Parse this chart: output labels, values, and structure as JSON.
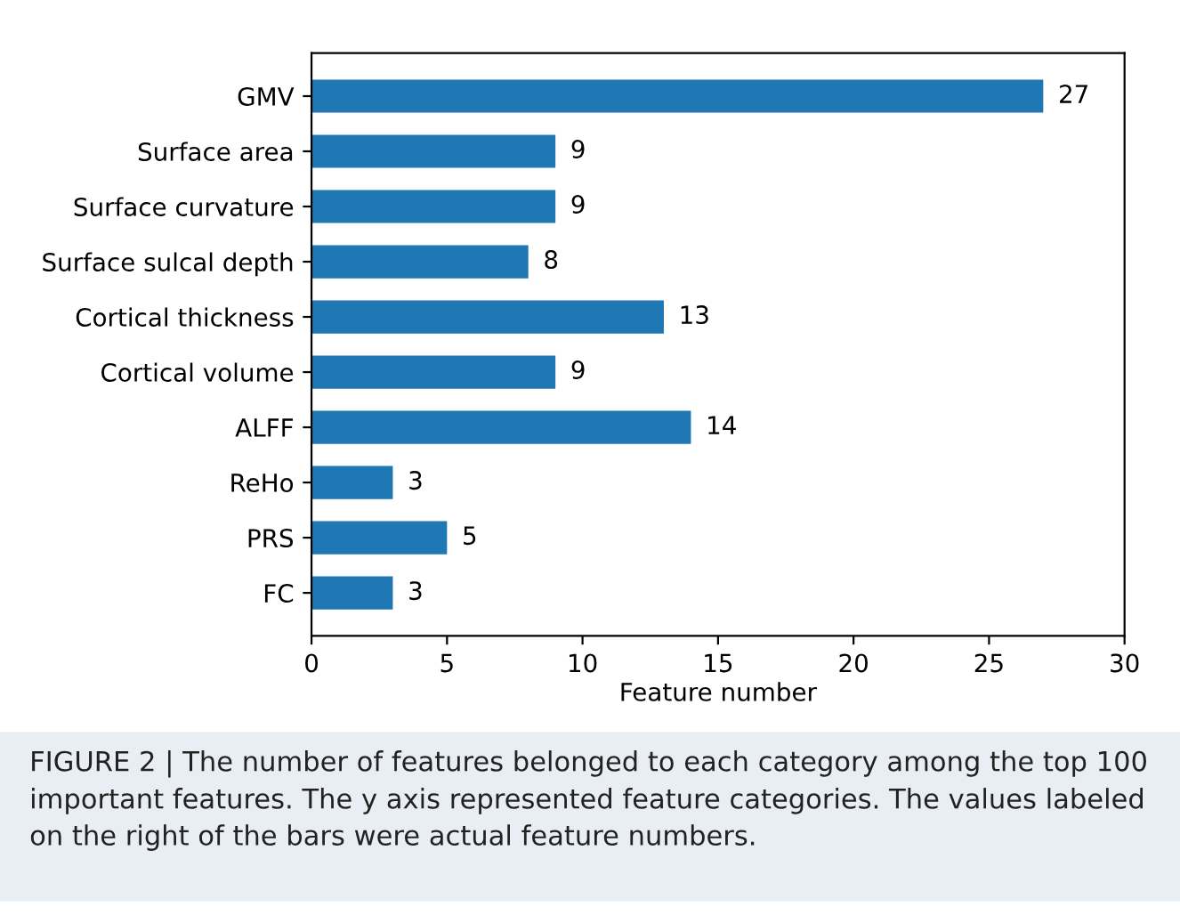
{
  "chart_data": {
    "type": "bar",
    "orientation": "horizontal",
    "xlabel": "Feature number",
    "categories": [
      "GMV",
      "Surface area",
      "Surface curvature",
      "Surface sulcal depth",
      "Cortical thickness",
      "Cortical volume",
      "ALFF",
      "ReHo",
      "PRS",
      "FC"
    ],
    "values": [
      27,
      9,
      9,
      8,
      13,
      9,
      14,
      3,
      5,
      3
    ],
    "color": "#1f77b4",
    "data_labels": true,
    "xlim": [
      0,
      30
    ],
    "xticks": [
      0,
      5,
      10,
      15,
      20,
      25,
      30
    ],
    "grid": false,
    "annotations": [
      "FIGURE 2 | The number of features belonged to each category among the top 100 important features. The y axis represented feature categories. The values labeled on the right of the bars were actual feature numbers."
    ]
  }
}
